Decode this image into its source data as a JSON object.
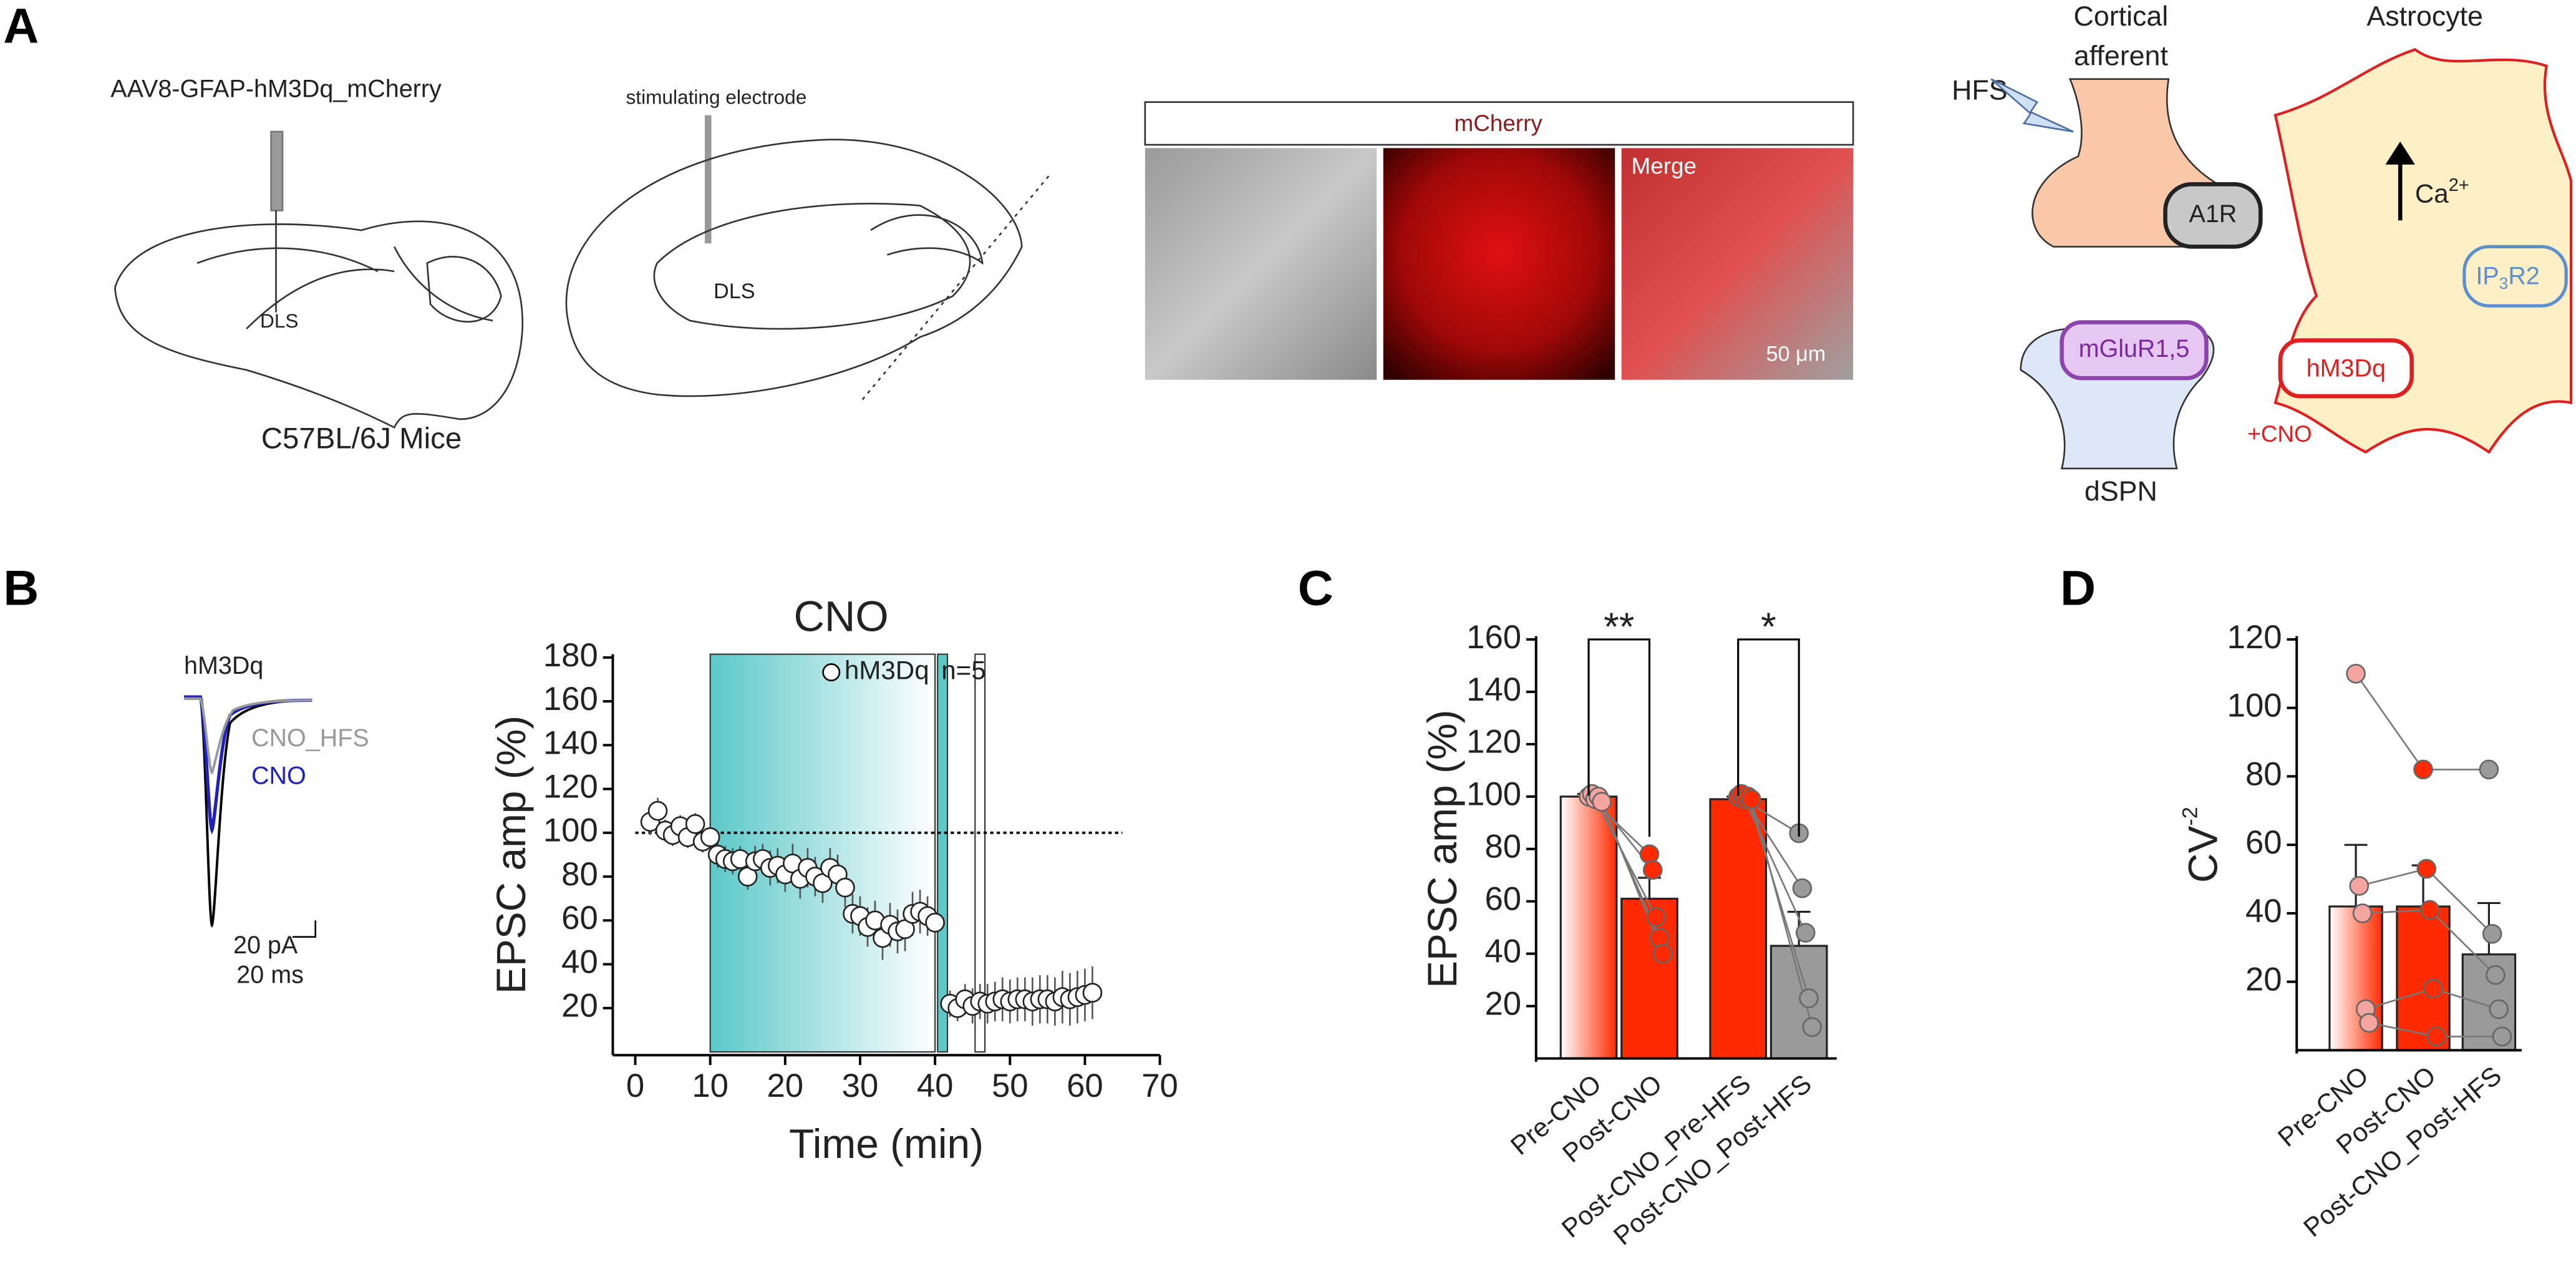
{
  "panel_labels": [
    "A",
    "B",
    "C",
    "D"
  ],
  "panel_a": {
    "virus": "AAV8-GFAP-hM3Dq_mCherry",
    "region_1": "DLS",
    "mouse": "C57BL/6J Mice",
    "electrode": "stimulating electrode",
    "region_2": "DLS",
    "image_header": "mCherry",
    "merge": "Merge",
    "scale": "50 μm",
    "cortical": "Cortical",
    "afferent": "afferent",
    "hfs": "HFS",
    "a1r": "A1R",
    "astrocyte": "Astrocyte",
    "ca": "Ca",
    "ca_sup": "2+",
    "ip": "IP",
    "ip_sub": "3",
    "ip_rest": "R2",
    "mglur": "mGluR1,5",
    "hm3dq": "hM3Dq",
    "cno": "+CNO",
    "dspn": "dSPN"
  },
  "panel_b_trace": {
    "label": "hM3Dq",
    "trace_1": "CNO_HFS",
    "trace_2": "CNO",
    "scale_y": "20 pA",
    "scale_x": "20 ms"
  },
  "chart_data": [
    {
      "type": "line",
      "title": "CNO",
      "x_label": "Time (min)",
      "y_label": "EPSC amp (%)",
      "annotation": "n=5",
      "xlim": [
        -3,
        70
      ],
      "ylim": [
        0,
        180
      ],
      "xticks": [
        0,
        10,
        20,
        30,
        40,
        50,
        60,
        70
      ],
      "yticks": [
        20,
        40,
        60,
        80,
        100,
        120,
        140,
        160,
        180
      ],
      "shaded_region": [
        10,
        40
      ],
      "hfs_marks": [
        41,
        46
      ],
      "reference_line": 100,
      "x": [
        2,
        3,
        4,
        5,
        6,
        7,
        8,
        9,
        10,
        11,
        12,
        13,
        14,
        15,
        16,
        17,
        18,
        19,
        20,
        21,
        22,
        23,
        24,
        25,
        26,
        27,
        28,
        29,
        30,
        31,
        32,
        33,
        34,
        35,
        36,
        37,
        38,
        39,
        40,
        42,
        43,
        44,
        45,
        46,
        47,
        48,
        49,
        50,
        51,
        52,
        53,
        54,
        55,
        56,
        57,
        58,
        59,
        60,
        61
      ],
      "series": [
        {
          "name": "hM3Dq",
          "color": "#ffffff",
          "values": [
            105,
            110,
            101,
            99,
            103,
            98,
            104,
            96,
            98,
            90,
            88,
            87,
            88,
            80,
            87,
            88,
            84,
            85,
            81,
            86,
            79,
            84,
            80,
            77,
            84,
            81,
            75,
            63,
            62,
            57,
            60,
            52,
            58,
            55,
            56,
            63,
            64,
            62,
            59,
            22,
            20,
            24,
            21,
            23,
            22,
            23,
            24,
            23,
            24,
            24,
            23,
            24,
            24,
            23,
            25,
            24,
            25,
            26,
            27
          ],
          "errors": [
            6,
            6,
            5,
            5,
            5,
            5,
            5,
            5,
            5,
            6,
            6,
            6,
            6,
            6,
            7,
            7,
            8,
            8,
            8,
            9,
            9,
            9,
            9,
            9,
            9,
            9,
            9,
            9,
            9,
            9,
            9,
            10,
            10,
            10,
            10,
            10,
            10,
            9,
            6,
            6,
            6,
            7,
            8,
            8,
            9,
            9,
            10,
            10,
            10,
            10,
            11,
            11,
            11,
            11,
            12,
            12,
            12,
            12,
            12
          ]
        }
      ]
    },
    {
      "type": "bar",
      "y_label": "EPSC amp (%)",
      "ylim": [
        0,
        160
      ],
      "yticks": [
        20,
        40,
        60,
        80,
        100,
        120,
        140,
        160
      ],
      "categories": [
        "Pre-CNO",
        "Post-CNO",
        "Post-CNO_Pre-HFS",
        "Post-CNO_Post-HFS"
      ],
      "values": [
        100,
        61,
        99,
        43
      ],
      "errors": [
        1,
        8,
        1,
        13
      ],
      "colors": [
        "gradient",
        "#ff2a00",
        "#ff2a00",
        "#9a9a9a"
      ],
      "point_colors": [
        "#f4a5a0",
        "#ff2a00",
        "#ff2a00",
        "#9a9a9a"
      ],
      "points": [
        [
          100,
          101,
          99,
          100,
          98
        ],
        [
          78,
          72,
          54,
          46,
          40
        ],
        [
          100,
          101,
          99,
          100,
          99
        ],
        [
          86,
          65,
          48,
          23,
          12
        ]
      ],
      "brackets": [
        {
          "label": "**"
        },
        {
          "label": "*"
        }
      ]
    },
    {
      "type": "bar",
      "y_label": "CV",
      "y_label_sup": "-2",
      "ylim": [
        0,
        120
      ],
      "yticks": [
        20,
        40,
        60,
        80,
        100,
        120
      ],
      "categories": [
        "Pre-CNO",
        "Post-CNO",
        "Post-CNO_Post-HFS"
      ],
      "values": [
        42,
        42,
        28
      ],
      "errors": [
        18,
        12,
        15
      ],
      "colors": [
        "gradient",
        "#ff2a00",
        "#9a9a9a"
      ],
      "point_colors": [
        "#f4a5a0",
        "#ff2a00",
        "#9a9a9a"
      ],
      "points": [
        [
          110,
          48,
          40,
          12,
          8
        ],
        [
          82,
          53,
          41,
          18,
          4
        ],
        [
          82,
          34,
          22,
          12,
          4
        ]
      ]
    }
  ]
}
